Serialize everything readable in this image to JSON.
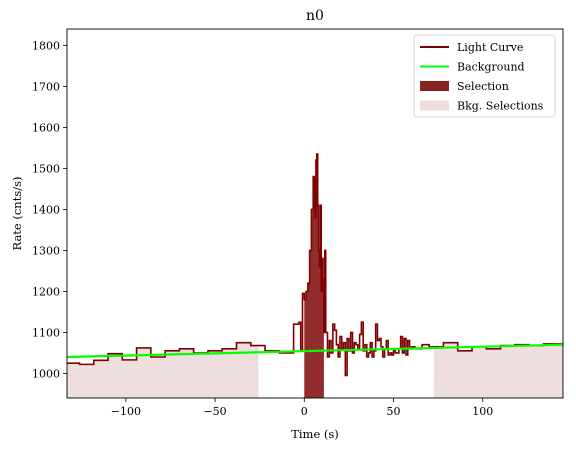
{
  "chart_data": {
    "type": "line",
    "title": "n0",
    "xlabel": "Time (s)",
    "ylabel": "Rate (cnts/s)",
    "xlim": [
      -133,
      145
    ],
    "ylim": [
      940,
      1840
    ],
    "xticks": [
      -100,
      -50,
      0,
      50,
      100
    ],
    "yticks": [
      1000,
      1100,
      1200,
      1300,
      1400,
      1500,
      1600,
      1700,
      1800
    ],
    "xtick_labels": [
      "−100",
      "−50",
      "0",
      "50",
      "100"
    ],
    "ytick_labels": [
      "1000",
      "1100",
      "1200",
      "1300",
      "1400",
      "1500",
      "1600",
      "1700",
      "1800"
    ],
    "grid": false,
    "legend_position": "top-right",
    "legend": [
      {
        "label": "Light Curve",
        "kind": "line",
        "color": "#800000"
      },
      {
        "label": "Background",
        "kind": "line",
        "color": "#00ff00"
      },
      {
        "label": "Selection",
        "kind": "patch",
        "color": "#8b2222"
      },
      {
        "label": "Bkg. Selections",
        "kind": "patch",
        "color": "#eedede"
      }
    ],
    "light_curve": {
      "name": "Light Curve",
      "color": "#800000",
      "edges": [
        -133,
        -126,
        -118,
        -110,
        -102,
        -94,
        -86,
        -78,
        -70,
        -62,
        -54,
        -46,
        -38,
        -30,
        -22,
        -14,
        -6,
        -3,
        -2,
        -1,
        0,
        1,
        2,
        3,
        4,
        5,
        5.5,
        6,
        6.5,
        7,
        7.5,
        8,
        8.5,
        9,
        9.5,
        10,
        10.5,
        11,
        11.5,
        12,
        13,
        14,
        15,
        16,
        17,
        18,
        19,
        20,
        21,
        22,
        23,
        24,
        25,
        26,
        27,
        28,
        29,
        30,
        31,
        32,
        33,
        34,
        35,
        36,
        37,
        38,
        39,
        40,
        41,
        42,
        43,
        44,
        45,
        46,
        47,
        48,
        49,
        50,
        51,
        52,
        53,
        54,
        55,
        56,
        57,
        58,
        59,
        60,
        61,
        62,
        64,
        66,
        70,
        78,
        86,
        94,
        102,
        110,
        118,
        126,
        134,
        145
      ],
      "values": [
        1025,
        1022,
        1032,
        1048,
        1033,
        1062,
        1040,
        1055,
        1060,
        1050,
        1055,
        1060,
        1075,
        1068,
        1055,
        1050,
        1120,
        1125,
        1055,
        1195,
        1180,
        1200,
        1220,
        1300,
        1400,
        1480,
        1475,
        1380,
        1520,
        1535,
        1410,
        1300,
        1260,
        1410,
        1200,
        1280,
        1230,
        1100,
        1300,
        1100,
        1040,
        1080,
        1050,
        1120,
        1105,
        1070,
        1040,
        1090,
        1060,
        1075,
        995,
        1085,
        1055,
        1100,
        1050,
        1075,
        1070,
        1060,
        1095,
        1125,
        1055,
        1070,
        1040,
        1050,
        1075,
        1040,
        1055,
        1120,
        1080,
        1085,
        1065,
        1040,
        1060,
        1080,
        1045,
        1050,
        1045,
        1060,
        1050,
        1050,
        1060,
        1090,
        1050,
        1085,
        1045,
        1080,
        1060,
        1065,
        1065,
        1060,
        1060,
        1070,
        1065,
        1075,
        1055,
        1065,
        1060,
        1068,
        1070,
        1068,
        1072
      ]
    },
    "background": {
      "name": "Background",
      "color": "#00ff00",
      "x": [
        -133,
        145
      ],
      "y": [
        1040,
        1070
      ]
    },
    "selection": {
      "name": "Selection",
      "color": "#8b2222",
      "range": [
        0,
        11
      ]
    },
    "background_selections": {
      "name": "Bkg. Selections",
      "color": "#eedede",
      "ranges": [
        [
          -133,
          -26
        ],
        [
          73,
          145
        ]
      ]
    }
  }
}
